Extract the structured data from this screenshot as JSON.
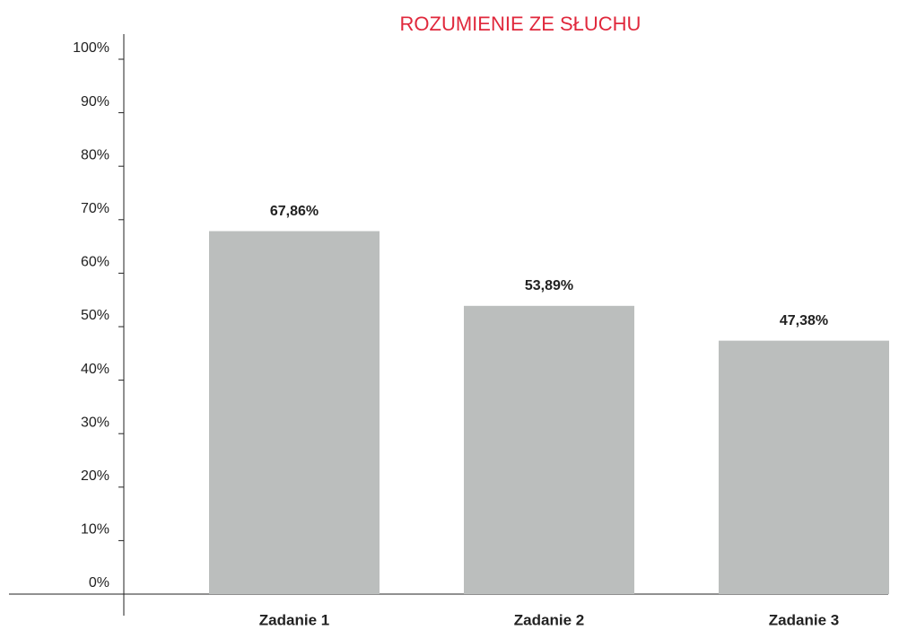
{
  "chart_data": {
    "type": "bar",
    "title": "ROZUMIENIE ZE SŁUCHU",
    "categories": [
      "Zadanie 1",
      "Zadanie 2",
      "Zadanie 3"
    ],
    "values": [
      67.86,
      53.89,
      47.38
    ],
    "value_labels": [
      "67,86%",
      "53,89%",
      "47,38%"
    ],
    "color": "#bbbebd",
    "ylim": [
      0,
      100
    ],
    "yticks": [
      {
        "value": 0,
        "label": "0%"
      },
      {
        "value": 10,
        "label": "10%"
      },
      {
        "value": 20,
        "label": "20%"
      },
      {
        "value": 30,
        "label": "30%"
      },
      {
        "value": 40,
        "label": "40%"
      },
      {
        "value": 50,
        "label": "50%"
      },
      {
        "value": 60,
        "label": "60%"
      },
      {
        "value": 70,
        "label": "70%"
      },
      {
        "value": 80,
        "label": "80%"
      },
      {
        "value": 90,
        "label": "90%"
      },
      {
        "value": 100,
        "label": "100%"
      }
    ],
    "grid": false
  }
}
